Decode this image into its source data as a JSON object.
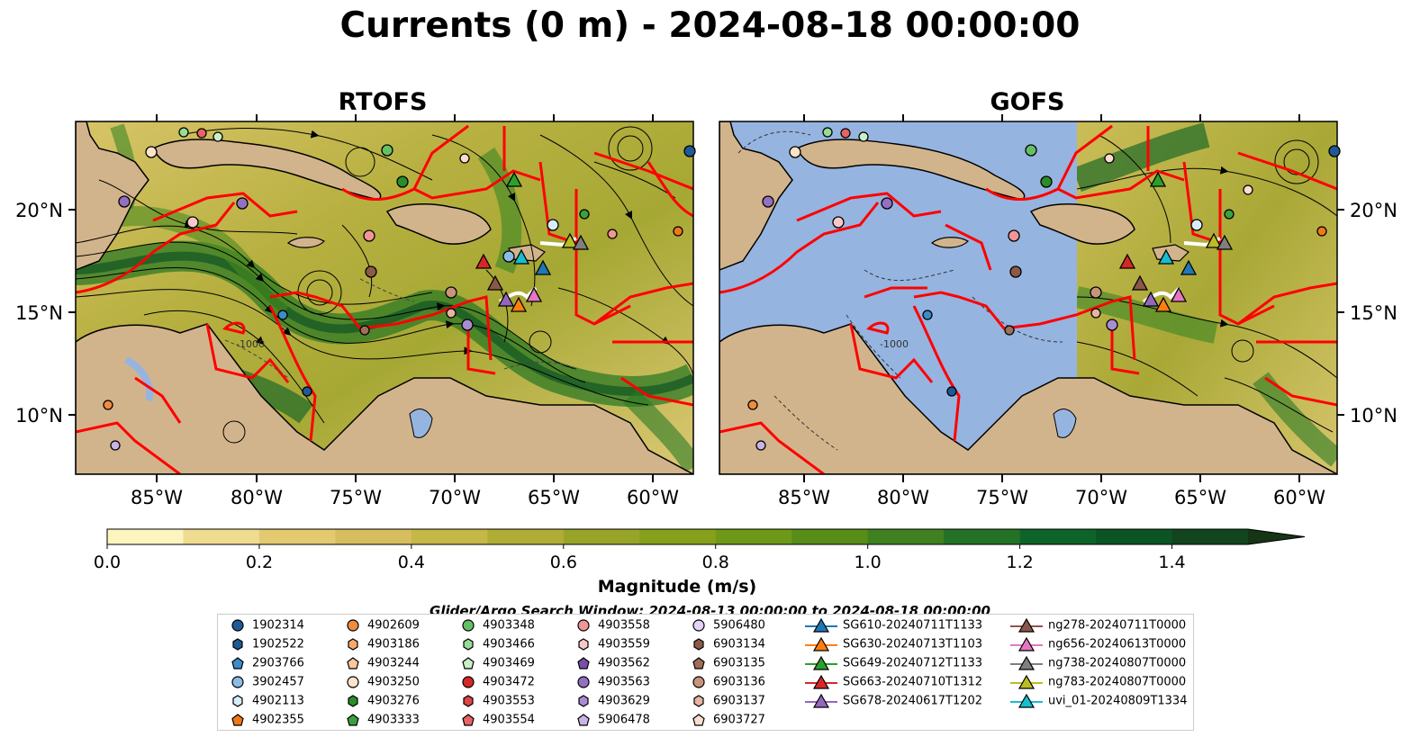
{
  "title": "Currents (0 m) - 2024-08-18 00:00:00",
  "panels": [
    "RTOFS",
    "GOFS"
  ],
  "lon_ticks": [
    "85°W",
    "80°W",
    "75°W",
    "70°W",
    "65°W",
    "60°W"
  ],
  "lat_ticks": [
    "20°N",
    "15°N",
    "10°N"
  ],
  "colorbar": {
    "label": "Magnitude (m/s)",
    "ticks": [
      "0.0",
      "0.2",
      "0.4",
      "0.6",
      "0.8",
      "1.0",
      "1.2",
      "1.4"
    ],
    "colors": [
      "#fdf5c0",
      "#f0dc90",
      "#e3c970",
      "#d6bd5d",
      "#c5b748",
      "#b0ad36",
      "#98a428",
      "#86a01c",
      "#6e9818",
      "#578d18",
      "#3f8120",
      "#247225",
      "#0e6428",
      "#0b5424",
      "#12441d",
      "#163416"
    ]
  },
  "isobath_label": "-1000",
  "search_window": "Glider/Argo Search Window: 2024-08-13 00:00:00 to 2024-08-18 00:00:00",
  "legend": [
    [
      {
        "label": "1902314",
        "marker": "circle",
        "color": "#1f5a96"
      },
      {
        "label": "1902522",
        "marker": "hexagon",
        "color": "#1f5a96"
      },
      {
        "label": "2903766",
        "marker": "pentagon",
        "color": "#3c8cc8"
      },
      {
        "label": "3902457",
        "marker": "circle",
        "color": "#8cbce6"
      },
      {
        "label": "4902113",
        "marker": "hexagon",
        "color": "#d8ecfa"
      },
      {
        "label": "4902355",
        "marker": "pentagon",
        "color": "#f07818"
      }
    ],
    [
      {
        "label": "4902609",
        "marker": "circle",
        "color": "#f08c3c"
      },
      {
        "label": "4903186",
        "marker": "hexagon",
        "color": "#f8aa6c"
      },
      {
        "label": "4903244",
        "marker": "pentagon",
        "color": "#fcc89c"
      },
      {
        "label": "4903250",
        "marker": "circle",
        "color": "#fde4c8"
      },
      {
        "label": "4903276",
        "marker": "hexagon",
        "color": "#2a8c2a"
      },
      {
        "label": "4903333",
        "marker": "pentagon",
        "color": "#3ca03c"
      }
    ],
    [
      {
        "label": "4903348",
        "marker": "circle",
        "color": "#64c064"
      },
      {
        "label": "4903466",
        "marker": "hexagon",
        "color": "#96dc96"
      },
      {
        "label": "4903469",
        "marker": "pentagon",
        "color": "#c8f0c8"
      },
      {
        "label": "4903472",
        "marker": "circle",
        "color": "#d42828"
      },
      {
        "label": "4903553",
        "marker": "hexagon",
        "color": "#dc4646"
      },
      {
        "label": "4903554",
        "marker": "pentagon",
        "color": "#e86464"
      }
    ],
    [
      {
        "label": "4903558",
        "marker": "circle",
        "color": "#f09696"
      },
      {
        "label": "4903559",
        "marker": "hexagon",
        "color": "#f8c8c8"
      },
      {
        "label": "4903562",
        "marker": "pentagon",
        "color": "#7850a8"
      },
      {
        "label": "4903563",
        "marker": "circle",
        "color": "#9470c0"
      },
      {
        "label": "4903629",
        "marker": "hexagon",
        "color": "#aa8cd2"
      },
      {
        "label": "5906478",
        "marker": "pentagon",
        "color": "#c8b4e6"
      }
    ],
    [
      {
        "label": "5906480",
        "marker": "circle",
        "color": "#e6d2f8"
      },
      {
        "label": "6903134",
        "marker": "hexagon",
        "color": "#8c5a46"
      },
      {
        "label": "6903135",
        "marker": "pentagon",
        "color": "#a06e5a"
      },
      {
        "label": "6903136",
        "marker": "circle",
        "color": "#c8947c"
      },
      {
        "label": "6903137",
        "marker": "hexagon",
        "color": "#e6b4a0"
      },
      {
        "label": "6903727",
        "marker": "pentagon",
        "color": "#fcdcd0"
      }
    ],
    [
      {
        "label": "SG610-20240711T1133",
        "marker": "triangle",
        "color": "#1f77b4"
      },
      {
        "label": "SG630-20240713T1103",
        "marker": "triangle",
        "color": "#ff7f0e"
      },
      {
        "label": "SG649-20240712T1133",
        "marker": "triangle",
        "color": "#2ca02c"
      },
      {
        "label": "SG663-20240710T1312",
        "marker": "triangle",
        "color": "#d62728"
      },
      {
        "label": "SG678-20240617T1202",
        "marker": "triangle",
        "color": "#9467bd"
      }
    ],
    [
      {
        "label": "ng278-20240711T0000",
        "marker": "triangle",
        "color": "#8c564b"
      },
      {
        "label": "ng656-20240613T0000",
        "marker": "triangle",
        "color": "#e377c2"
      },
      {
        "label": "ng738-20240807T0000",
        "marker": "triangle",
        "color": "#7f7f7f"
      },
      {
        "label": "ng783-20240807T0000",
        "marker": "triangle",
        "color": "#bcbd22"
      },
      {
        "label": "uvi_01-20240809T1334",
        "marker": "triangle",
        "color": "#17becf"
      }
    ]
  ],
  "colors": {
    "land": "#d2b48c",
    "ocean_gofs": "#96b4e0",
    "boundary": "#ff0000",
    "streamline": "#000000"
  }
}
